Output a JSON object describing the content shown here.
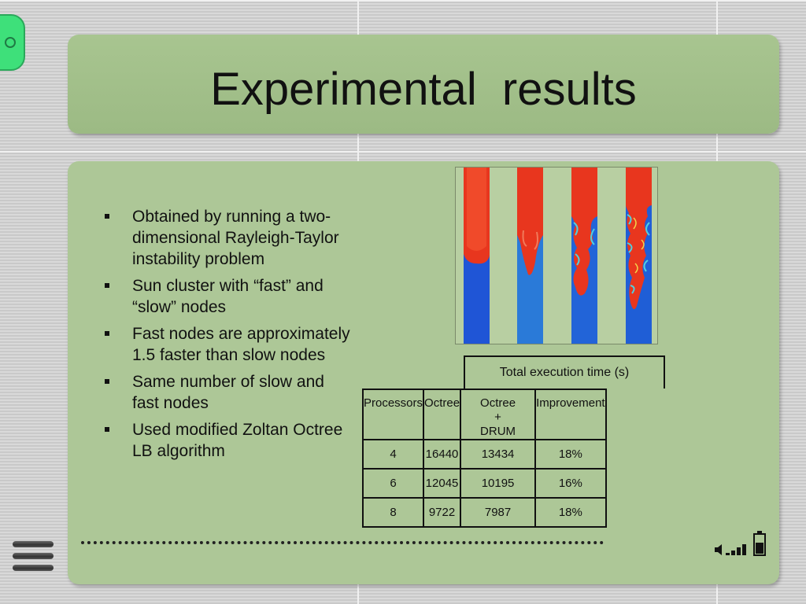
{
  "slide": {
    "title": "Experimental  results",
    "bullets": [
      "Obtained by running a two-dimensional Rayleigh-Taylor instability problem",
      "Sun cluster with “fast” and “slow” nodes",
      "Fast nodes are approximately 1.5 faster than slow nodes",
      "Same number of slow and fast nodes",
      "Used modified Zoltan Octree LB algorithm"
    ]
  },
  "table": {
    "caption": "Total execution time (s)",
    "headers": [
      "Processors",
      "Octree",
      "Octree + DRUM",
      "Improvement"
    ],
    "rows": [
      [
        "4",
        "16440",
        "13434",
        "18%"
      ],
      [
        "6",
        "12045",
        "10195",
        "16%"
      ],
      [
        "8",
        "9722",
        "7987",
        "18%"
      ]
    ]
  },
  "icons": {
    "side_tab": "circle-icon",
    "menu": "menu-icon",
    "speaker": "speaker-icon",
    "signal": "signal-bars-icon",
    "battery": "battery-icon",
    "accent_green": "#3ee07a",
    "panel_green": "#adc797",
    "sim_red": "#e8361e",
    "sim_blue": "#1f6fd6"
  }
}
